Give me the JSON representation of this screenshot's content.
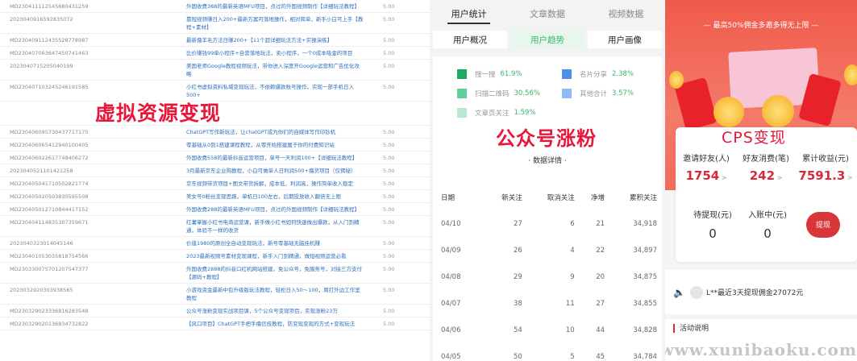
{
  "orders": {
    "rows": [
      {
        "id": "MD230411112545680431259",
        "title": "外国收费388的最新英语MFU项目，点过的外国视频制作【详细玩法教程】",
        "price": "5.00"
      },
      {
        "id": "2023040916592835072",
        "title": "靠短视频赚日入200+最新方案可落地操作，相对简单，新手小白可上手【教程+素材】",
        "price": "5.00"
      },
      {
        "id": "MD230409112435528778987",
        "title": "最新撸羊毛方法日赚200+【11个超详细玩法方法+实操演练】",
        "price": "5.00"
      },
      {
        "id": "MD230407063647450741463",
        "title": "比价赚钱99单小程序+自营落地玩法，卖小程序，一个0成本吸金的项目",
        "price": "5.00"
      },
      {
        "id": "2023040715205040199",
        "title": "美国老师Google教程视频玩法，带你进入深度开Google运营和广告优化攻略",
        "price": "5.00"
      },
      {
        "id": "MD230407103245246191585",
        "title": "小红书虚拟资料私域变现玩法，不依赖爆款账号操作，实现一部手机日入500+",
        "price": "5.00"
      },
      {
        "id": "MD230406095730437717175",
        "title": "ChatGPT写作新玩法，让chatGPT成为你们的自媒体写作印钞机",
        "price": "5.00"
      },
      {
        "id": "MD230406065412940100405",
        "title": "零基础从0到1搭建课程教程，从零开始搭建属于你的付费知识站",
        "price": "5.00"
      },
      {
        "id": "MD230406022617748406272",
        "title": "外国收费558的最新抖音运营项目，单号一天利润100+【详细玩法教程】",
        "price": "5.00"
      },
      {
        "id": "2023040521101421258",
        "title": "3月最新京东企业购教程，小白可做单人日利润500+撸货项目（仅揭秘）",
        "price": "5.00"
      },
      {
        "id": "MD230405041710502821774",
        "title": "京东视频带货项目+图文带货拆解，成本低，利润高，操作简单收入稳定",
        "price": "5.00"
      },
      {
        "id": "MD230405020503830595508",
        "title": "美女号0粉丝变现思路，单机日100左右，后期投放收入翻倍无上限",
        "price": "5.00"
      },
      {
        "id": "MD230405012710844417152",
        "title": "外国收费288的最新英语MFU项目，点过的外国视频制作【详细玩法教程】",
        "price": "5.00"
      },
      {
        "id": "MD230404114835307359671",
        "title": "红薯掌握小红书电商运营课，新手做小红书如何快速做出爆款，从入门到精通，体验不一样的收货",
        "price": "5.00"
      },
      {
        "id": "2023040323014045146",
        "title": "价值1980的原创全自动变现玩法，新号零基础无脑挂机赚",
        "price": "5.00"
      },
      {
        "id": "MD230401053035818754566",
        "title": "2023最新视频号素材变现课程，新手入门到精通，做短视频运营必看",
        "price": "5.00"
      },
      {
        "id": "MD230330075701207547377",
        "title": "外国收费2888的抖音口红机网站搭建，免公众号，免服务号，对接三方支付【源码+教程】",
        "price": "5.00"
      },
      {
        "id": "2023032920303938565",
        "title": "小游戏资金最新中包升级版玩法教程，轻松日入50～100，周打外边工作室教程",
        "price": "5.00"
      },
      {
        "id": "MD230329023336816283548",
        "title": "公众号涨粉变现实战项目课，5个公众号变现项目，实现涨粉23万",
        "price": "5.00"
      },
      {
        "id": "MD230329020136834732822",
        "title": "【风口项目】ChatGPT手把手撸信技教程，防变现变现的方式+变现玩法",
        "price": "5.00"
      }
    ],
    "overlay": "虚拟资源变现"
  },
  "wechat": {
    "tabs": [
      "用户统计",
      "文章数据",
      "视频数据"
    ],
    "subtabs": [
      "用户概况",
      "用户趋势",
      "用户画像"
    ],
    "legend": [
      {
        "label": "搜一搜",
        "value": "61.9%",
        "color": "#1aad62"
      },
      {
        "label": "名片分享",
        "value": "2.38%",
        "color": "#4a8fe8"
      },
      {
        "label": "扫描二维码",
        "value": "30.56%",
        "color": "#5fd09a"
      },
      {
        "label": "其他合计",
        "value": "3.57%",
        "color": "#8fbaf3"
      },
      {
        "label": "文章页关注",
        "value": "1.59%",
        "color": "#b5ead0"
      }
    ],
    "overlay": "公众号涨粉",
    "section_title": "· 数据详情 ·",
    "table": {
      "headers": [
        "日期",
        "新关注",
        "取消关注",
        "净增",
        "累积关注"
      ],
      "rows": [
        [
          "04/10",
          "27",
          "6",
          "21",
          "34,918"
        ],
        [
          "04/09",
          "26",
          "4",
          "22",
          "34,897"
        ],
        [
          "04/08",
          "29",
          "9",
          "20",
          "34,875"
        ],
        [
          "04/07",
          "38",
          "11",
          "27",
          "34,855"
        ],
        [
          "04/06",
          "54",
          "10",
          "44",
          "34,828"
        ],
        [
          "04/05",
          "50",
          "5",
          "45",
          "34,784"
        ]
      ]
    }
  },
  "cps": {
    "subtitle": "—  最高50%佣金多邀多得无上限  —",
    "overlay": "CPS变现",
    "stats": [
      {
        "label": "邀请好友(人)",
        "value": "1754"
      },
      {
        "label": "好友消费(笔)",
        "value": "242"
      },
      {
        "label": "累计收益(元)",
        "value": "7591.3"
      }
    ],
    "pending": {
      "label": "待提现(元)",
      "value": "0"
    },
    "incoming": {
      "label": "入账中(元)",
      "value": "0"
    },
    "withdraw_label": "提现",
    "notice": "L**最近3天提现佣金27072元",
    "activity": "活动说明",
    "watermark": "www.xunibaoku.com"
  }
}
